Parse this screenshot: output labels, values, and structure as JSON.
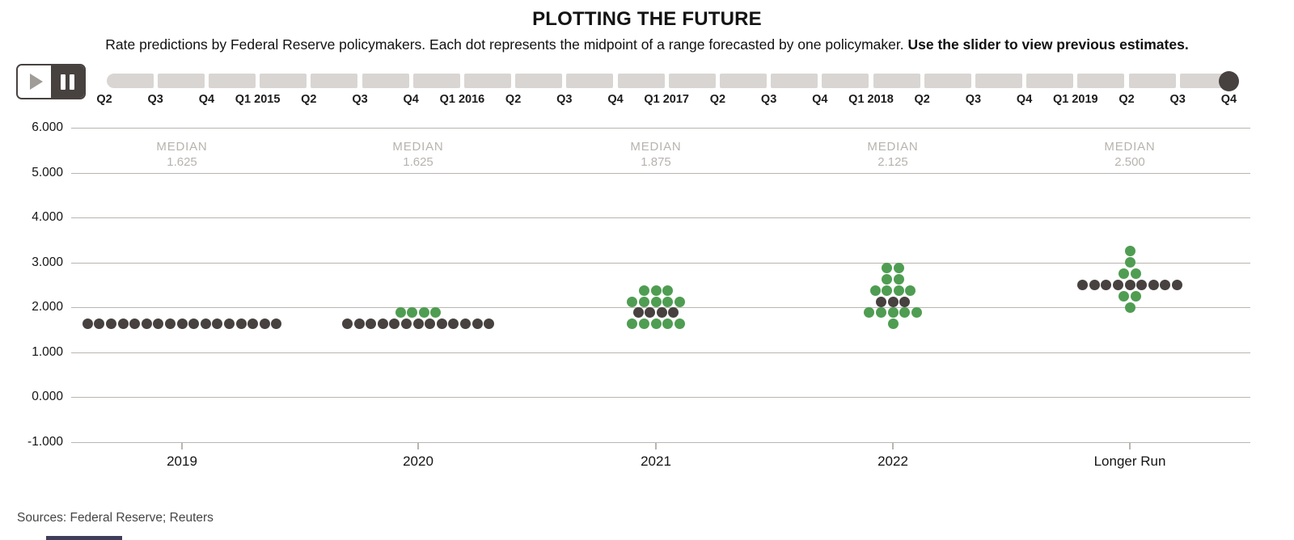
{
  "header": {
    "title": "PLOTTING THE FUTURE",
    "subtitle": "Rate predictions by Federal Reserve policymakers. Each dot represents the midpoint of a range forecasted by one policymaker. ",
    "subtitle_bold": "Use the slider to view previous estimates."
  },
  "slider": {
    "tick_labels": [
      "Q2",
      "Q3",
      "Q4",
      "Q1 2015",
      "Q2",
      "Q3",
      "Q4",
      "Q1 2016",
      "Q2",
      "Q3",
      "Q4",
      "Q1 2017",
      "Q2",
      "Q3",
      "Q4",
      "Q1 2018",
      "Q2",
      "Q3",
      "Q4",
      "Q1 2019",
      "Q2",
      "Q3",
      "Q4"
    ]
  },
  "chart_data": {
    "type": "scatter",
    "variant": "fed-dot-plot",
    "title": "PLOTTING THE FUTURE",
    "ylim": [
      -1.0,
      6.0
    ],
    "ytick_labels": [
      "6.000",
      "5.000",
      "4.000",
      "3.000",
      "2.000",
      "1.000",
      "0.000",
      "-1.000"
    ],
    "median_caption": "MEDIAN",
    "grid": true,
    "legend": "none",
    "columns": [
      {
        "label": "2019",
        "median": "1.625",
        "dots": [
          {
            "value": 1.625,
            "count": 17,
            "color": "dark"
          }
        ]
      },
      {
        "label": "2020",
        "median": "1.625",
        "dots": [
          {
            "value": 1.875,
            "count": 4,
            "color": "green"
          },
          {
            "value": 1.625,
            "count": 13,
            "color": "dark"
          }
        ]
      },
      {
        "label": "2021",
        "median": "1.875",
        "dots": [
          {
            "value": 2.375,
            "count": 3,
            "color": "green"
          },
          {
            "value": 2.125,
            "count": 5,
            "color": "green"
          },
          {
            "value": 1.875,
            "count": 4,
            "color": "dark"
          },
          {
            "value": 1.625,
            "count": 5,
            "color": "green"
          }
        ]
      },
      {
        "label": "2022",
        "median": "2.125",
        "dots": [
          {
            "value": 2.875,
            "count": 2,
            "color": "green"
          },
          {
            "value": 2.625,
            "count": 2,
            "color": "green"
          },
          {
            "value": 2.375,
            "count": 4,
            "color": "green"
          },
          {
            "value": 2.125,
            "count": 3,
            "color": "dark"
          },
          {
            "value": 1.875,
            "count": 5,
            "color": "green"
          },
          {
            "value": 1.625,
            "count": 1,
            "color": "green"
          }
        ]
      },
      {
        "label": "Longer Run",
        "median": "2.500",
        "dots": [
          {
            "value": 3.25,
            "count": 1,
            "color": "green"
          },
          {
            "value": 3.0,
            "count": 1,
            "color": "green"
          },
          {
            "value": 2.75,
            "count": 2,
            "color": "green"
          },
          {
            "value": 2.5,
            "count": 9,
            "color": "dark"
          },
          {
            "value": 2.25,
            "count": 2,
            "color": "green"
          },
          {
            "value": 2.0,
            "count": 1,
            "color": "green"
          }
        ]
      }
    ],
    "colors": {
      "green": "#4f9d52",
      "dark": "#474140",
      "track": "#d9d5d2",
      "gridline": "#b9b5b1",
      "median_text": "#b7b3ae"
    }
  },
  "footer": {
    "source": "Sources: Federal Reserve; Reuters"
  }
}
